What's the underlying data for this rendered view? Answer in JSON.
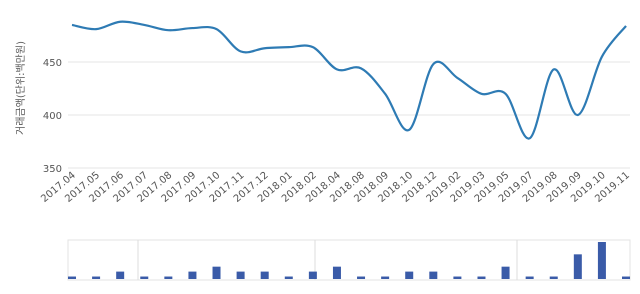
{
  "chart_data": [
    {
      "type": "line",
      "y_label": "거래금액(단위:백만원)",
      "categories": [
        "2017.04",
        "2017.05",
        "2017.06",
        "2017.07",
        "2017.08",
        "2017.09",
        "2017.10",
        "2017.11",
        "2017.12",
        "2018.01",
        "2018.02",
        "2018.04",
        "2018.08",
        "2018.09",
        "2018.10",
        "2018.12",
        "2019.02",
        "2019.03",
        "2019.05",
        "2019.07",
        "2019.08",
        "2019.09",
        "2019.10",
        "2019.11"
      ],
      "values": [
        485,
        481,
        488,
        485,
        480,
        482,
        481,
        460,
        463,
        464,
        464,
        443,
        444,
        420,
        386,
        448,
        435,
        420,
        420,
        378,
        443,
        400,
        455,
        484
      ],
      "color": "#2e7bb4",
      "ylim": [
        350,
        500
      ],
      "yticks": [
        350,
        400,
        450
      ],
      "grid": true
    },
    {
      "type": "bar",
      "values": [
        1,
        1,
        3,
        1,
        1,
        3,
        5,
        3,
        3,
        1,
        3,
        5,
        1,
        1,
        3,
        3,
        1,
        1,
        5,
        1,
        1,
        10,
        15,
        1
      ],
      "color": "#3a5ba8",
      "ylim": [
        0,
        15
      ]
    }
  ]
}
